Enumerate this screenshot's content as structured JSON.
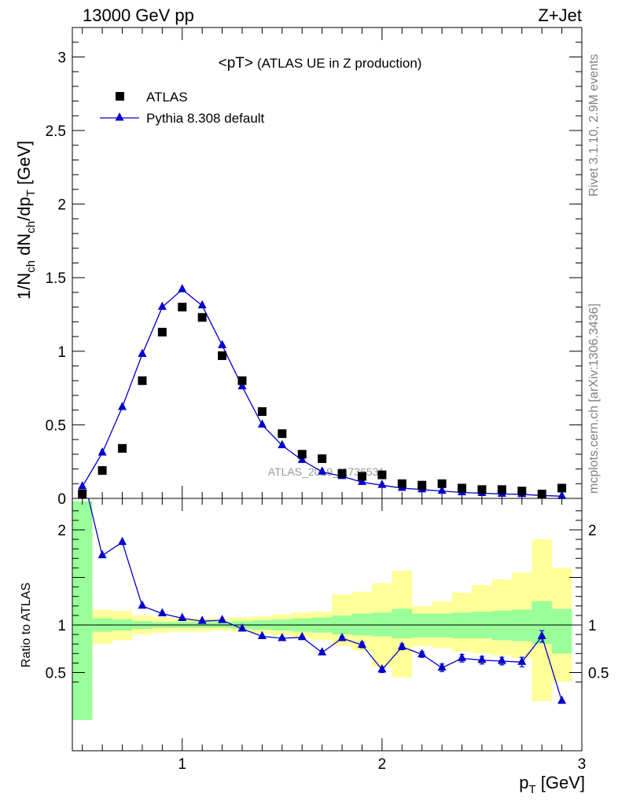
{
  "header": {
    "left": "13000 GeV pp",
    "right": "Z+Jet"
  },
  "side_labels": {
    "top": "Rivet 3.1.10,  2.9M events",
    "bottom": "mcplots.cern.ch [arXiv:1306.3436]"
  },
  "colors": {
    "data": "#000000",
    "mc": "#0000cc",
    "band_inner": "#99ff99",
    "band_outer": "#ffff99"
  },
  "chart_data": [
    {
      "type": "scatter",
      "panel": "main",
      "title": "<pT> (ATLAS UE in Z production)",
      "title_main": "<pT>",
      "title_sub": "(ATLAS UE in Z production)",
      "watermark": "ATLAS_2019_I1736531",
      "xlabel": "",
      "ylabel": "1/N_ch dN_ch/dp_T [GeV]",
      "xlim": [
        0.45,
        3.0
      ],
      "ylim": [
        0,
        3.2
      ],
      "yticks": [
        "0",
        "0.5",
        "1",
        "1.5",
        "2",
        "2.5",
        "3"
      ],
      "legend_position": "top-left",
      "x": [
        0.5,
        0.6,
        0.7,
        0.8,
        0.9,
        1.0,
        1.1,
        1.2,
        1.3,
        1.4,
        1.5,
        1.6,
        1.7,
        1.8,
        1.9,
        2.0,
        2.1,
        2.2,
        2.3,
        2.4,
        2.5,
        2.6,
        2.7,
        2.8,
        2.9
      ],
      "series": [
        {
          "name": "ATLAS",
          "marker": "square",
          "values": [
            0.03,
            0.19,
            0.34,
            0.8,
            1.13,
            1.3,
            1.23,
            0.97,
            0.8,
            0.59,
            0.44,
            0.3,
            0.27,
            0.17,
            0.15,
            0.16,
            0.1,
            0.09,
            0.1,
            0.07,
            0.06,
            0.06,
            0.05,
            0.03,
            0.07
          ]
        },
        {
          "name": "Pythia 8.308 default",
          "marker": "triangle",
          "values": [
            0.08,
            0.31,
            0.62,
            0.98,
            1.3,
            1.42,
            1.31,
            1.04,
            0.76,
            0.5,
            0.36,
            0.26,
            0.18,
            0.15,
            0.11,
            0.09,
            0.07,
            0.06,
            0.05,
            0.04,
            0.035,
            0.03,
            0.028,
            0.02,
            0.015
          ]
        }
      ]
    },
    {
      "type": "line",
      "panel": "ratio",
      "ylabel": "Ratio to ATLAS",
      "xlabel": "p_T [GeV]",
      "xlim": [
        0.45,
        3.0
      ],
      "ylim": [
        0.34,
        2.3
      ],
      "xticks": [
        "1",
        "2",
        "3"
      ],
      "yticks": [
        "0.5",
        "1",
        "2"
      ],
      "reference_line": 1,
      "bands": {
        "edges": [
          0.45,
          0.55,
          0.65,
          0.75,
          0.85,
          0.95,
          1.05,
          1.15,
          1.25,
          1.35,
          1.45,
          1.55,
          1.65,
          1.75,
          1.85,
          1.95,
          2.05,
          2.15,
          2.25,
          2.35,
          2.45,
          2.55,
          2.65,
          2.75,
          2.85,
          2.95
        ],
        "inner_lo": [
          0.0,
          0.93,
          0.94,
          0.96,
          0.97,
          0.97,
          0.97,
          0.97,
          0.96,
          0.95,
          0.94,
          0.93,
          0.92,
          0.9,
          0.89,
          0.88,
          0.86,
          0.87,
          0.87,
          0.86,
          0.86,
          0.84,
          0.83,
          0.8,
          0.7
        ],
        "inner_hi": [
          2.3,
          1.07,
          1.06,
          1.04,
          1.03,
          1.03,
          1.03,
          1.03,
          1.04,
          1.05,
          1.06,
          1.07,
          1.08,
          1.1,
          1.12,
          1.13,
          1.17,
          1.12,
          1.12,
          1.13,
          1.14,
          1.15,
          1.16,
          1.25,
          1.17
        ],
        "outer_lo": [
          0.0,
          0.8,
          0.84,
          0.9,
          0.92,
          0.93,
          0.93,
          0.94,
          0.93,
          0.91,
          0.89,
          0.86,
          0.84,
          0.78,
          0.73,
          0.56,
          0.45,
          0.78,
          0.76,
          0.72,
          0.7,
          0.68,
          0.65,
          0.2,
          0.4
        ],
        "outer_hi": [
          2.3,
          1.16,
          1.15,
          1.1,
          1.08,
          1.07,
          1.07,
          1.07,
          1.08,
          1.09,
          1.11,
          1.13,
          1.14,
          1.32,
          1.35,
          1.44,
          1.57,
          1.2,
          1.25,
          1.34,
          1.42,
          1.48,
          1.55,
          1.9,
          1.6
        ]
      },
      "series": [
        {
          "name": "Pythia 8.308 default",
          "values": [
            2.6,
            1.73,
            1.87,
            1.2,
            1.12,
            1.07,
            1.04,
            1.05,
            0.96,
            0.88,
            0.86,
            0.87,
            0.71,
            0.86,
            0.79,
            0.53,
            0.77,
            0.69,
            0.55,
            0.65,
            0.63,
            0.62,
            0.61,
            0.88,
            0.2
          ],
          "errors": [
            0.0,
            0.01,
            0.01,
            0.01,
            0.01,
            0.01,
            0.01,
            0.01,
            0.01,
            0.01,
            0.01,
            0.01,
            0.02,
            0.02,
            0.03,
            0.03,
            0.03,
            0.03,
            0.04,
            0.04,
            0.04,
            0.04,
            0.05,
            0.06,
            0.0
          ]
        }
      ]
    }
  ]
}
